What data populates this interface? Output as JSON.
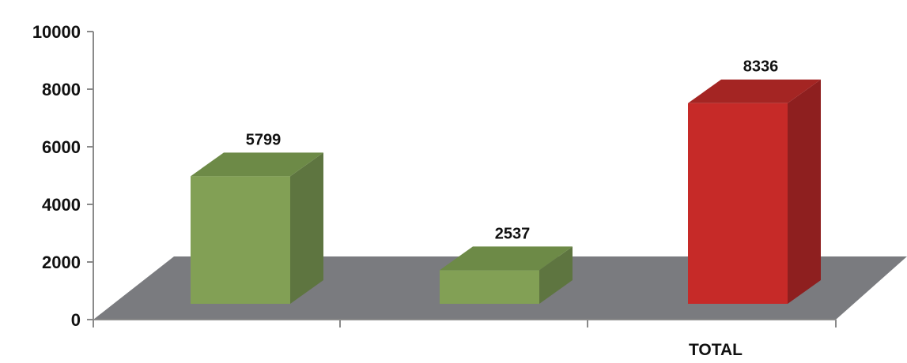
{
  "chart_data": {
    "type": "bar",
    "title": "",
    "xlabel": "",
    "ylabel": "",
    "ylim": [
      0,
      10000
    ],
    "yticks": [
      0,
      2000,
      4000,
      6000,
      8000,
      10000
    ],
    "categories": [
      "",
      "",
      "TOTAL"
    ],
    "values": [
      5799,
      2537,
      8336
    ],
    "data_labels": [
      "5799",
      "2537",
      "8336"
    ],
    "grid": false,
    "legend": "none",
    "style": "3d",
    "colors": {
      "bar_front": [
        "#82a055",
        "#82a055",
        "#c62a28"
      ],
      "bar_side": [
        "#5e7540",
        "#5e7540",
        "#8e1f1f"
      ],
      "bar_top": [
        "#6d8a47",
        "#6d8a47",
        "#a42523"
      ],
      "floor": "#7a7b7f",
      "axis": "#8a8a8a"
    }
  }
}
